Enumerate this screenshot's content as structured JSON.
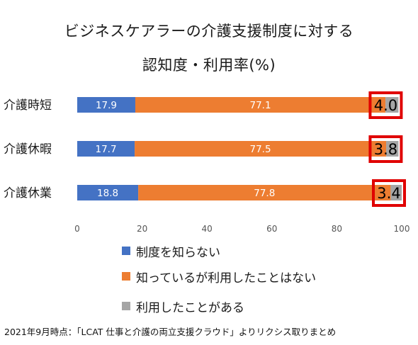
{
  "title_line1": "ビジネスケアラーの介護支援制度に対する",
  "title_line2": "認知度・利用率(%)",
  "footnote": "2021年9月時点：「LCAT 仕事と介護の両立支援クラウド」よりリクシス取りまとめ",
  "colors": {
    "unaware": "#4472c4",
    "aware_not_used": "#ed7d31",
    "used": "#a5a5a5",
    "highlight": "#e00000"
  },
  "chart_data": {
    "type": "bar",
    "orientation": "horizontal",
    "stacked": true,
    "title": "ビジネスケアラーの介護支援制度に対する 認知度・利用率(%)",
    "categories": [
      "介護時短",
      "介護休暇",
      "介護休業"
    ],
    "series": [
      {
        "name": "制度を知らない",
        "values": [
          17.9,
          17.7,
          18.8
        ]
      },
      {
        "name": "知っているが利用したことはない",
        "values": [
          77.1,
          77.5,
          77.8
        ]
      },
      {
        "name": "利用したことがある",
        "values": [
          4.0,
          3.8,
          3.4
        ]
      }
    ],
    "xlim": [
      0,
      100
    ],
    "xticks": [
      "0",
      "20",
      "40",
      "60",
      "80",
      "100"
    ],
    "grid": false,
    "legend_position": "bottom",
    "highlighted_series": "利用したことがある",
    "value_labels": [
      [
        "17.9",
        "77.1",
        "4.0"
      ],
      [
        "17.7",
        "77.5",
        "3.8"
      ],
      [
        "18.8",
        "77.8",
        "3.4"
      ]
    ]
  }
}
